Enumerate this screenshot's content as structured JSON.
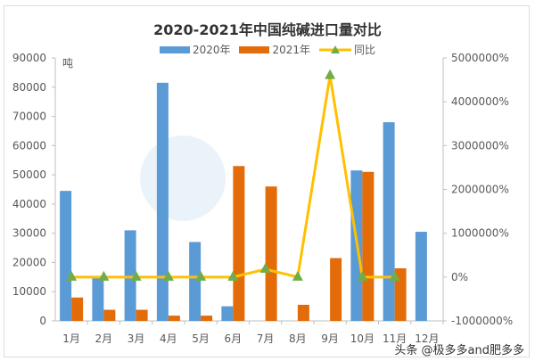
{
  "chart_data": {
    "type": "bar+line",
    "title": "2020-2021年中国纯碱进口量对比",
    "y_unit": "吨",
    "categories": [
      "1月",
      "2月",
      "3月",
      "4月",
      "5月",
      "6月",
      "7月",
      "8月",
      "9月",
      "10月",
      "11月",
      "12月"
    ],
    "series": [
      {
        "name": "2020年",
        "type": "bar",
        "axis": "left",
        "color": "#5b9bd5",
        "values": [
          44500,
          15000,
          31000,
          81500,
          27000,
          5000,
          0,
          0,
          0,
          51500,
          68000,
          30500
        ]
      },
      {
        "name": "2021年",
        "type": "bar",
        "axis": "left",
        "color": "#e36c09",
        "values": [
          8000,
          3800,
          3800,
          1800,
          1800,
          53000,
          46000,
          5500,
          21500,
          51000,
          18000,
          null
        ]
      },
      {
        "name": "同比",
        "type": "line",
        "axis": "right",
        "color": "#ffc000",
        "marker_color": "#70ad47",
        "values": [
          0,
          0,
          0,
          0,
          0,
          0,
          180000,
          0,
          4600000,
          0,
          0,
          null
        ]
      }
    ],
    "ylim_left": [
      0,
      90000
    ],
    "yticks_left": [
      "0",
      "10000",
      "20000",
      "30000",
      "40000",
      "50000",
      "60000",
      "70000",
      "80000",
      "90000"
    ],
    "ylim_right": [
      -1000000,
      5000000
    ],
    "yticks_right": [
      "-1000000%",
      "0%",
      "1000000%",
      "2000000%",
      "3000000%",
      "4000000%",
      "5000000%"
    ],
    "grid": false,
    "legend": "top"
  },
  "watermark": "头条 @极多多and肥多多"
}
